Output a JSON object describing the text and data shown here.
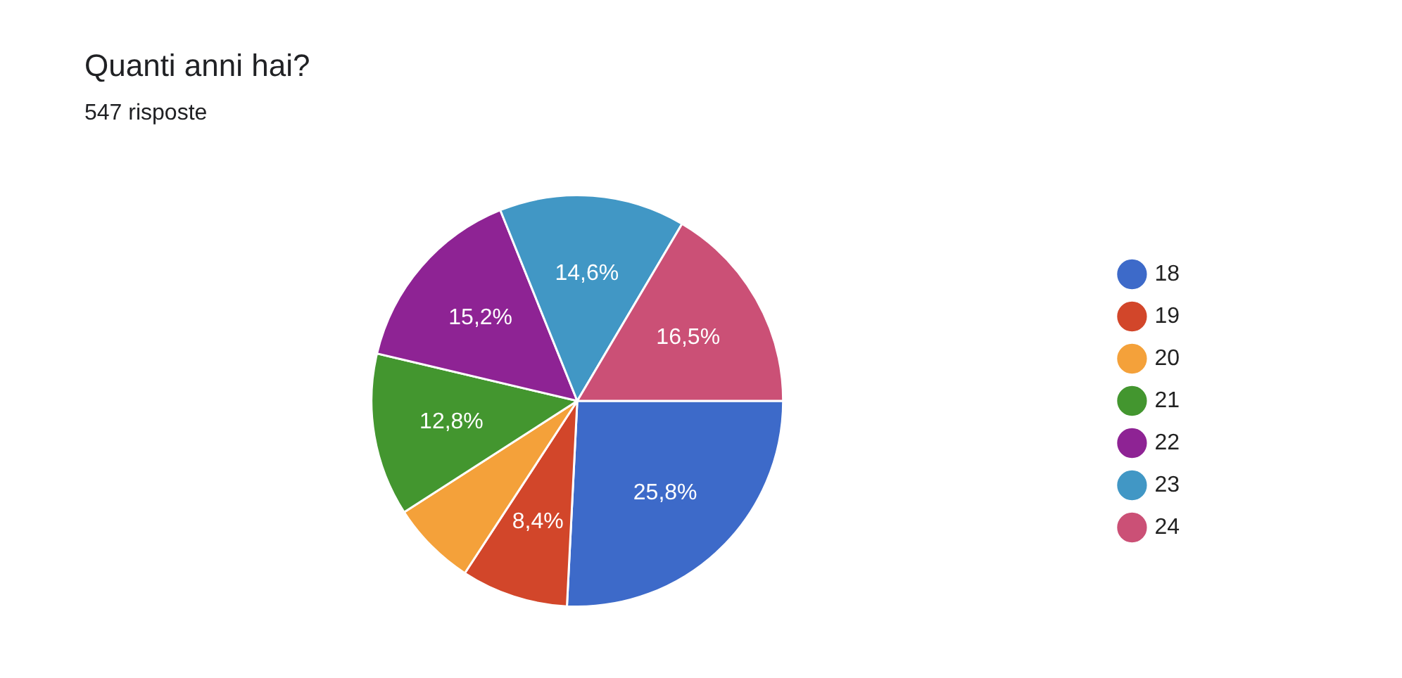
{
  "chart_data": {
    "type": "pie",
    "title": "Quanti anni hai?",
    "subtitle": "547 risposte",
    "categories": [
      "18",
      "19",
      "20",
      "21",
      "22",
      "23",
      "24"
    ],
    "values": [
      25.8,
      8.4,
      6.7,
      12.8,
      15.2,
      14.6,
      16.5
    ],
    "value_labels": [
      "25,8%",
      "8,4%",
      null,
      "12,8%",
      "15,2%",
      "14,6%",
      "16,5%"
    ],
    "colors": [
      "#3d6ac9",
      "#d2462a",
      "#f4a13a",
      "#43962f",
      "#8e2394",
      "#4197c5",
      "#cb5076"
    ],
    "legend": "right"
  }
}
